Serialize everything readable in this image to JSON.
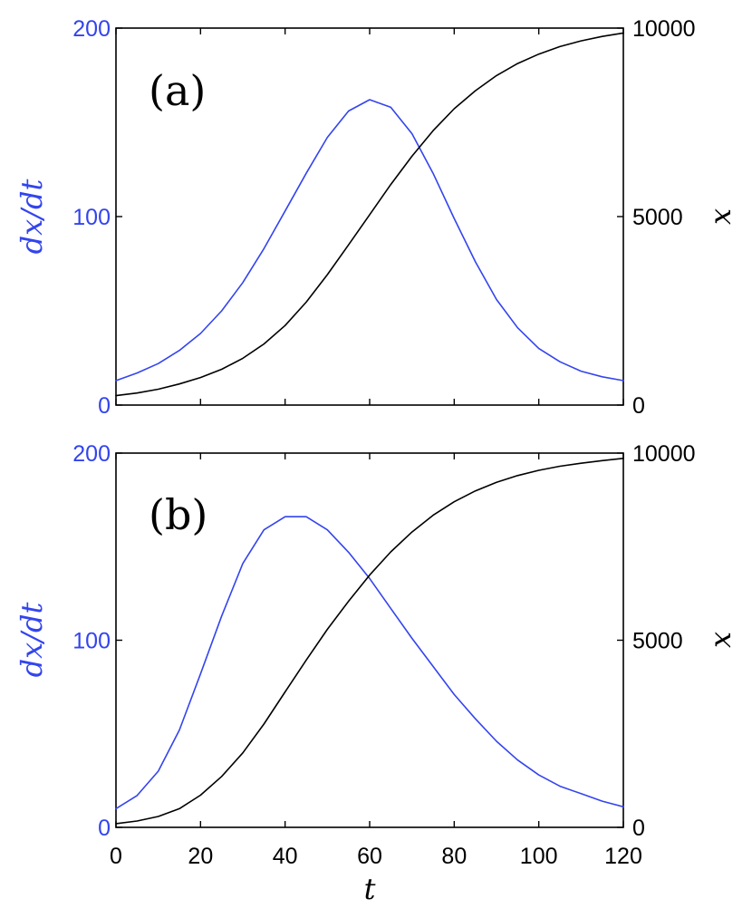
{
  "chart_data": [
    {
      "type": "line",
      "panel_label": "(a)",
      "xlabel": "",
      "ylabel_left": "dx/dt",
      "ylabel_right": "x",
      "xlim": [
        0,
        120
      ],
      "ylim_left": [
        0,
        200
      ],
      "ylim_right": [
        0,
        10000
      ],
      "x_ticks": [
        0,
        20,
        40,
        60,
        80,
        100,
        120
      ],
      "x_tick_labels_shown": false,
      "y_left_ticks": [
        0,
        100,
        200
      ],
      "y_right_ticks": [
        0,
        5000,
        10000
      ],
      "grid": false,
      "series": [
        {
          "axis": "left",
          "color": "#3344ee",
          "x": [
            0,
            5,
            10,
            15,
            20,
            25,
            30,
            35,
            40,
            45,
            50,
            55,
            60,
            65,
            70,
            75,
            80,
            85,
            90,
            95,
            100,
            105,
            110,
            115,
            120
          ],
          "values": [
            13,
            17,
            22,
            29,
            38,
            50,
            65,
            83,
            103,
            123,
            142,
            156,
            162,
            158,
            144,
            123,
            99,
            76,
            56,
            41,
            30,
            23,
            18,
            15,
            13
          ]
        },
        {
          "axis": "right",
          "color": "#000000",
          "x": [
            0,
            5,
            10,
            15,
            20,
            25,
            30,
            35,
            40,
            45,
            50,
            55,
            60,
            65,
            70,
            75,
            80,
            85,
            90,
            95,
            100,
            105,
            110,
            115,
            120
          ],
          "values": [
            250,
            320,
            420,
            560,
            730,
            950,
            1240,
            1620,
            2110,
            2730,
            3460,
            4250,
            5050,
            5850,
            6600,
            7280,
            7860,
            8340,
            8740,
            9060,
            9310,
            9510,
            9660,
            9780,
            9870
          ]
        }
      ]
    },
    {
      "type": "line",
      "panel_label": "(b)",
      "xlabel": "t",
      "ylabel_left": "dx/dt",
      "ylabel_right": "x",
      "xlim": [
        0,
        120
      ],
      "ylim_left": [
        0,
        200
      ],
      "ylim_right": [
        0,
        10000
      ],
      "x_ticks": [
        0,
        20,
        40,
        60,
        80,
        100,
        120
      ],
      "x_tick_labels_shown": true,
      "y_left_ticks": [
        0,
        100,
        200
      ],
      "y_right_ticks": [
        0,
        5000,
        10000
      ],
      "grid": false,
      "series": [
        {
          "axis": "left",
          "color": "#3344ee",
          "x": [
            0,
            5,
            10,
            15,
            20,
            25,
            30,
            35,
            40,
            45,
            50,
            55,
            60,
            65,
            70,
            75,
            80,
            85,
            90,
            95,
            100,
            105,
            110,
            115,
            120
          ],
          "values": [
            10,
            17,
            30,
            52,
            82,
            113,
            141,
            159,
            166,
            166,
            159,
            147,
            133,
            117,
            101,
            86,
            71,
            58,
            46,
            36,
            28,
            22,
            18,
            14,
            11
          ]
        },
        {
          "axis": "right",
          "color": "#000000",
          "x": [
            0,
            5,
            10,
            15,
            20,
            25,
            30,
            35,
            40,
            45,
            50,
            55,
            60,
            65,
            70,
            75,
            80,
            85,
            90,
            95,
            100,
            105,
            110,
            115,
            120
          ],
          "values": [
            100,
            170,
            290,
            500,
            860,
            1360,
            1990,
            2760,
            3620,
            4470,
            5290,
            6040,
            6740,
            7360,
            7890,
            8340,
            8700,
            8990,
            9220,
            9400,
            9540,
            9650,
            9730,
            9800,
            9860
          ]
        }
      ]
    }
  ]
}
